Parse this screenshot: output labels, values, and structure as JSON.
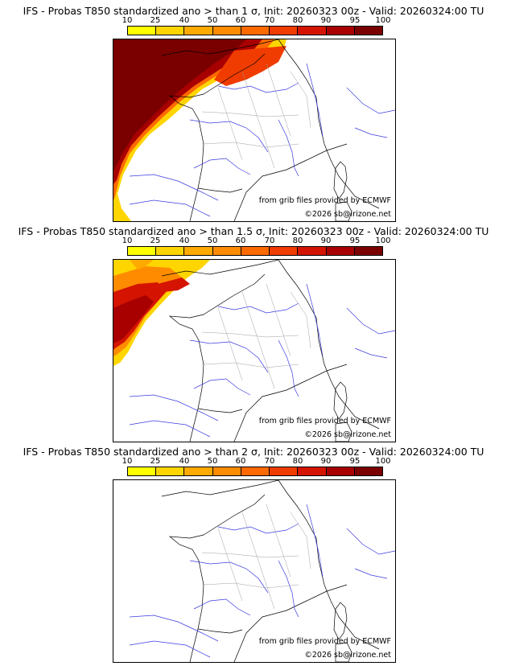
{
  "legend": {
    "ticks": [
      "10",
      "25",
      "40",
      "50",
      "60",
      "70",
      "80",
      "90",
      "95",
      "100"
    ],
    "colors": [
      "#ffff00",
      "#ffd500",
      "#ffaa00",
      "#ff8c00",
      "#ff6a00",
      "#f03c00",
      "#d41400",
      "#a80000",
      "#7a0000"
    ]
  },
  "panels": [
    {
      "title": "IFS - Probas T850  standardized ano > than 1 σ, Init: 20260323 00z - Valid: 20260324:00 TU",
      "threshold": "1 σ",
      "credit": "from grib files provided by ECMWF",
      "copyright": "©2026 sb@irizone.net"
    },
    {
      "title": "IFS - Probas T850  standardized ano > than 1.5 σ, Init: 20260323 00z - Valid: 20260324:00 TU",
      "threshold": "1.5 σ",
      "credit": "from grib files provided by ECMWF",
      "copyright": "©2026 sb@irizone.net"
    },
    {
      "title": "IFS - Probas T850  standardized ano > than 2 σ, Init: 20260323 00z - Valid: 20260324:00 TU",
      "threshold": "2 σ",
      "credit": "from grib files provided by ECMWF",
      "copyright": "©2026 sb@irizone.net"
    }
  ]
}
